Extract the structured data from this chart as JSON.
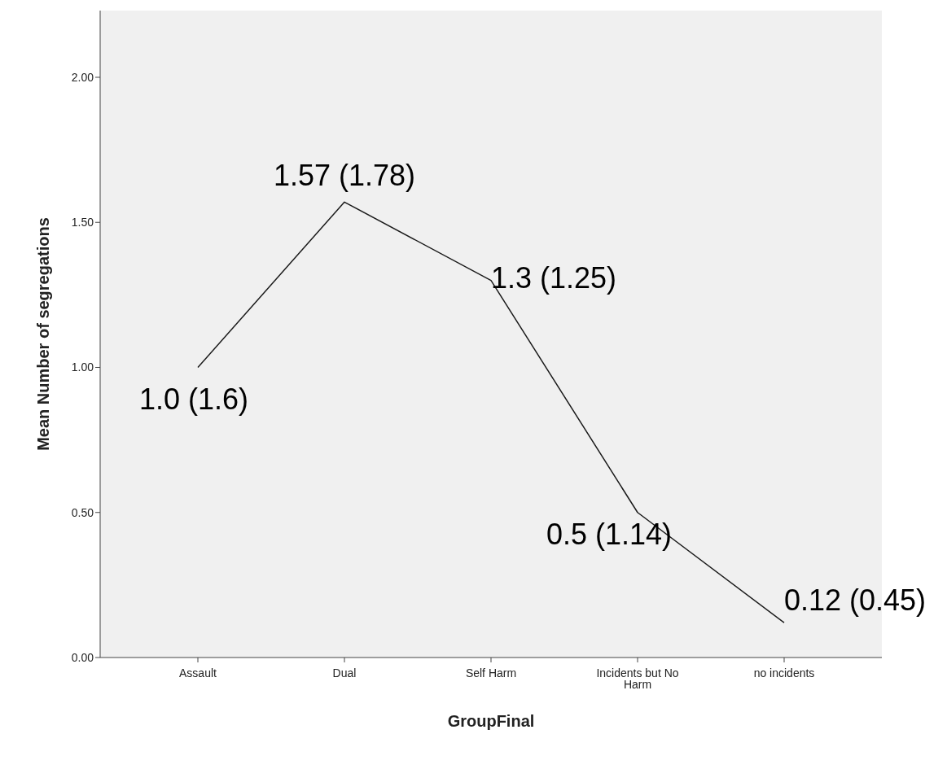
{
  "chart_data": {
    "type": "line",
    "xlabel": "GroupFinal",
    "ylabel": "Mean Number of segregations",
    "categories": [
      "Assault",
      "Dual",
      "Self Harm",
      "Incidents but No Harm",
      "no incidents"
    ],
    "values": [
      1.0,
      1.57,
      1.3,
      0.5,
      0.12
    ],
    "color": "#1a1a1a",
    "marker": "none",
    "grid": false,
    "legend": false,
    "ylim": [
      0,
      2.23
    ],
    "yticks": [
      {
        "value": 0,
        "label": "0.00"
      },
      {
        "value": 0.5,
        "label": "0.50"
      },
      {
        "value": 1,
        "label": "1.00"
      },
      {
        "value": 1.5,
        "label": "1.50"
      },
      {
        "value": 2,
        "label": "2.00"
      }
    ],
    "annotations": [
      {
        "text": "1.0 (1.6)",
        "x": "Assault",
        "y": 1.0
      },
      {
        "text": "1.57 (1.78)",
        "x": "Dual",
        "y": 1.57
      },
      {
        "text": "1.3 (1.25)",
        "x": "Self Harm",
        "y": 1.3
      },
      {
        "text": "0.5 (1.14)",
        "x": "Incidents but No Harm",
        "y": 0.5
      },
      {
        "text": "0.12 (0.45)",
        "x": "no incidents",
        "y": 0.12
      }
    ]
  }
}
